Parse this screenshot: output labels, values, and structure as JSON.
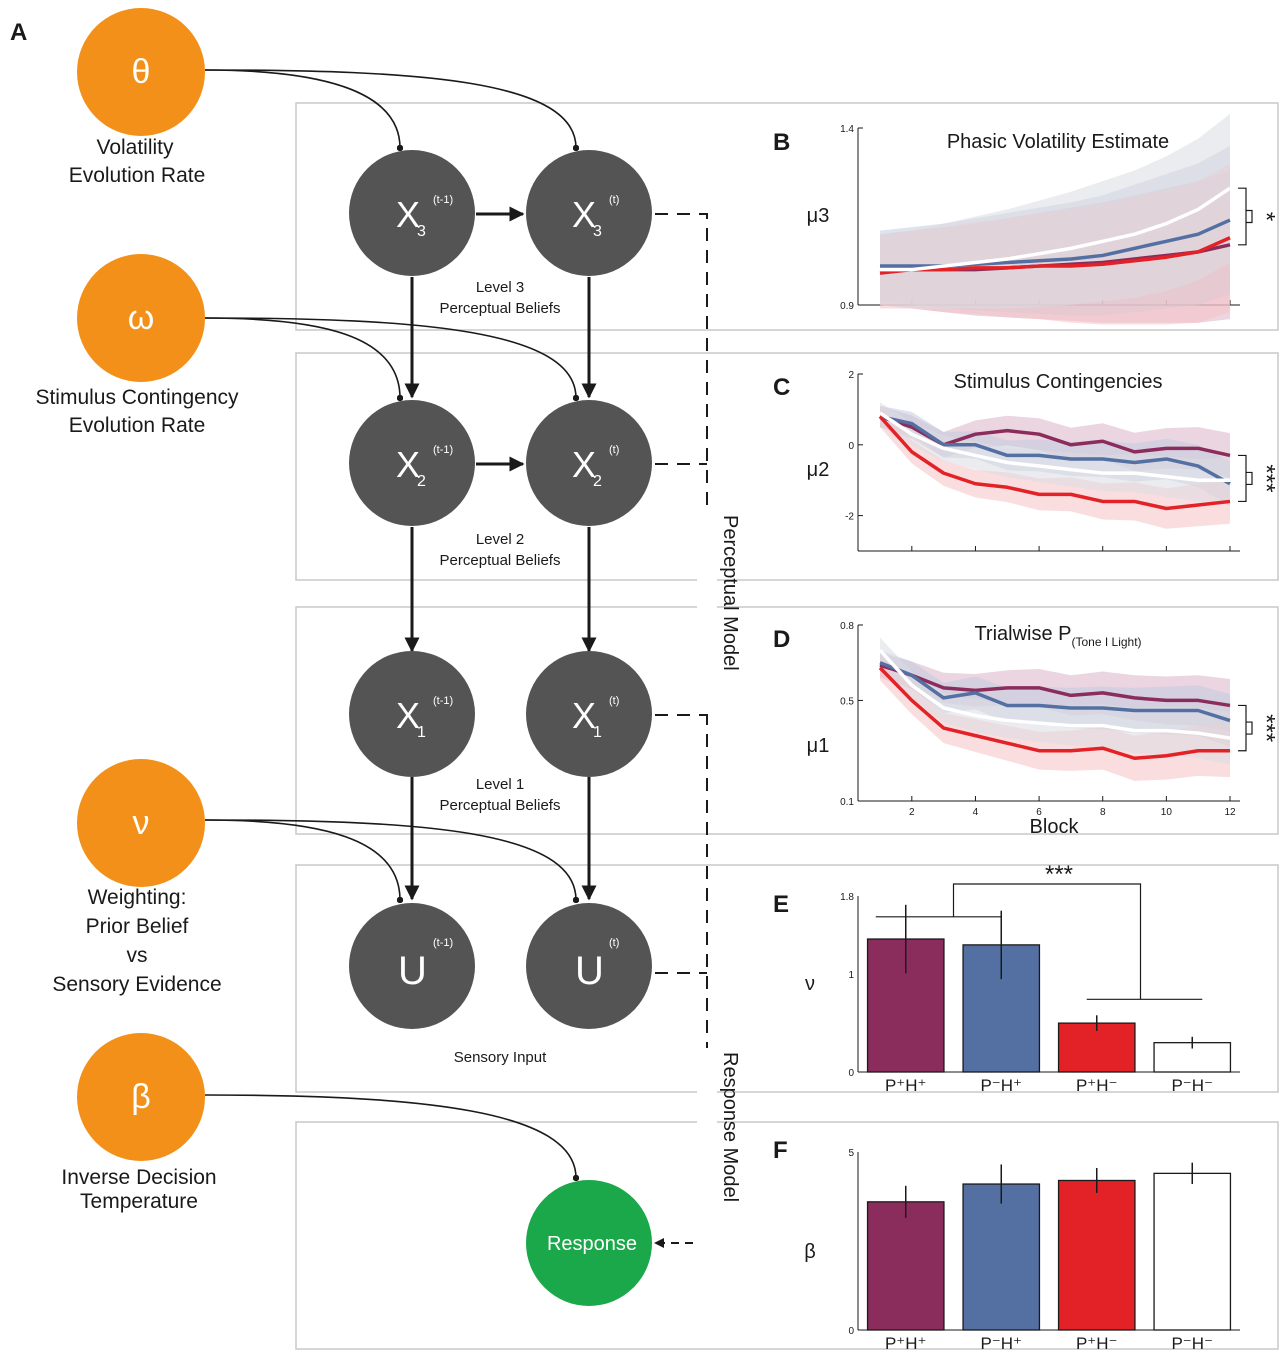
{
  "panel_labels": {
    "a": "A",
    "b": "B",
    "c": "C",
    "d": "D",
    "e": "E",
    "f": "F"
  },
  "params": [
    {
      "symbol": "θ",
      "lines": [
        "Volatility",
        "Evolution Rate"
      ]
    },
    {
      "symbol": "ω",
      "lines": [
        "Stimulus Contingency",
        "Evolution Rate"
      ]
    },
    {
      "symbol": "ν",
      "lines": [
        "Weighting:",
        "Prior Belief",
        "vs",
        "Sensory Evidence"
      ]
    },
    {
      "symbol": "β",
      "lines": [
        "Inverse Decision",
        "Temperature"
      ]
    }
  ],
  "nodes": {
    "x3": {
      "label": "X",
      "sub": "3",
      "sup_prev": "(t-1)",
      "sup_cur": "(t)"
    },
    "x2": {
      "label": "X",
      "sub": "2",
      "sup_prev": "(t-1)",
      "sup_cur": "(t)"
    },
    "x1": {
      "label": "X",
      "sub": "1",
      "sup_prev": "(t-1)",
      "sup_cur": "(t)"
    },
    "u": {
      "label": "U",
      "sup_prev": "(t-1)",
      "sup_cur": "(t)"
    },
    "response": "Response"
  },
  "levels": {
    "l3": [
      "Level 3",
      "Perceptual Beliefs"
    ],
    "l2": [
      "Level 2",
      "Perceptual Beliefs"
    ],
    "l1": [
      "Level 1",
      "Perceptual Beliefs"
    ],
    "input": "Sensory Input"
  },
  "model_labels": {
    "perceptual": "Perceptual Model",
    "response": "Response Model"
  },
  "colors": {
    "orange": "#f39019",
    "node": "#545454",
    "green": "#1aa84a",
    "purple": "#8b2d5c",
    "blue": "#5470a3",
    "red": "#e32227",
    "white": "#ffffff"
  },
  "chart_data": [
    {
      "id": "B",
      "type": "line",
      "title": "Phasic Volatility Estimate",
      "ylabel": "μ3",
      "ylim": [
        0.9,
        1.4
      ],
      "yticks": [
        "1.4",
        "0.9"
      ],
      "x": [
        1,
        2,
        3,
        4,
        5,
        6,
        7,
        8,
        9,
        10,
        11,
        12
      ],
      "series": [
        {
          "group": "P⁺H⁺",
          "color": "#8b2d5c",
          "values": [
            1.0,
            1.0,
            1.0,
            1.0,
            1.005,
            1.01,
            1.015,
            1.02,
            1.03,
            1.04,
            1.05,
            1.07
          ]
        },
        {
          "group": "P⁻H⁺",
          "color": "#5470a3",
          "values": [
            1.01,
            1.01,
            1.01,
            1.015,
            1.02,
            1.025,
            1.03,
            1.04,
            1.06,
            1.08,
            1.1,
            1.14
          ]
        },
        {
          "group": "P⁺H⁻",
          "color": "#e32227",
          "values": [
            0.99,
            1.0,
            1.0,
            1.005,
            1.005,
            1.01,
            1.01,
            1.015,
            1.025,
            1.035,
            1.05,
            1.09
          ]
        },
        {
          "group": "P⁻H⁻",
          "color": "#ffffff",
          "values": [
            1.0,
            1.0,
            1.01,
            1.02,
            1.03,
            1.045,
            1.06,
            1.08,
            1.1,
            1.13,
            1.17,
            1.23
          ]
        }
      ],
      "significance": "*"
    },
    {
      "id": "C",
      "type": "line",
      "title": "Stimulus Contingencies",
      "ylabel": "μ2",
      "ylim": [
        -3,
        2
      ],
      "yticks": [
        "2",
        "0",
        "-2"
      ],
      "x": [
        1,
        2,
        3,
        4,
        5,
        6,
        7,
        8,
        9,
        10,
        11,
        12
      ],
      "series": [
        {
          "group": "P⁺H⁺",
          "color": "#8b2d5c",
          "values": [
            0.8,
            0.5,
            0.0,
            0.3,
            0.4,
            0.3,
            0.0,
            0.1,
            -0.2,
            -0.1,
            -0.1,
            -0.3
          ]
        },
        {
          "group": "P⁻H⁺",
          "color": "#5470a3",
          "values": [
            0.8,
            0.6,
            0.0,
            0.0,
            -0.3,
            -0.3,
            -0.4,
            -0.4,
            -0.5,
            -0.4,
            -0.6,
            -1.1
          ]
        },
        {
          "group": "P⁺H⁻",
          "color": "#e32227",
          "values": [
            0.8,
            -0.2,
            -0.8,
            -1.1,
            -1.2,
            -1.4,
            -1.4,
            -1.6,
            -1.6,
            -1.8,
            -1.7,
            -1.6
          ]
        },
        {
          "group": "P⁻H⁻",
          "color": "#ffffff",
          "values": [
            0.9,
            0.3,
            -0.1,
            -0.3,
            -0.5,
            -0.6,
            -0.7,
            -0.8,
            -0.8,
            -0.9,
            -1.0,
            -1.0
          ]
        }
      ],
      "significance": "***"
    },
    {
      "id": "D",
      "type": "line",
      "title": "Trialwise P",
      "title_sub": "(Tone I Light)",
      "ylabel": "μ1",
      "ylim": [
        0.1,
        0.8
      ],
      "yticks": [
        "0.8",
        "0.5",
        "0.1"
      ],
      "xlabel": "Block",
      "xticks": [
        "2",
        "4",
        "6",
        "8",
        "10",
        "12"
      ],
      "x": [
        1,
        2,
        3,
        4,
        5,
        6,
        7,
        8,
        9,
        10,
        11,
        12
      ],
      "series": [
        {
          "group": "P⁺H⁺",
          "color": "#8b2d5c",
          "values": [
            0.64,
            0.6,
            0.55,
            0.54,
            0.55,
            0.55,
            0.52,
            0.53,
            0.51,
            0.5,
            0.5,
            0.48
          ]
        },
        {
          "group": "P⁻H⁺",
          "color": "#5470a3",
          "values": [
            0.65,
            0.6,
            0.51,
            0.53,
            0.48,
            0.48,
            0.47,
            0.47,
            0.46,
            0.46,
            0.46,
            0.42
          ]
        },
        {
          "group": "P⁺H⁻",
          "color": "#e32227",
          "values": [
            0.63,
            0.5,
            0.39,
            0.36,
            0.33,
            0.3,
            0.3,
            0.31,
            0.27,
            0.28,
            0.3,
            0.3
          ]
        },
        {
          "group": "P⁻H⁻",
          "color": "#ffffff",
          "values": [
            0.7,
            0.56,
            0.47,
            0.44,
            0.42,
            0.41,
            0.4,
            0.4,
            0.38,
            0.38,
            0.37,
            0.35
          ]
        }
      ],
      "significance": "***"
    },
    {
      "id": "E",
      "type": "bar",
      "ylabel": "ν",
      "ylim": [
        0,
        1.8
      ],
      "yticks": [
        "1.8",
        "1",
        "0"
      ],
      "categories": [
        "P⁺H⁺",
        "P⁻H⁺",
        "P⁺H⁻",
        "P⁻H⁻"
      ],
      "values": [
        1.36,
        1.3,
        0.5,
        0.3
      ],
      "errors": [
        0.35,
        0.35,
        0.08,
        0.06
      ],
      "colors": [
        "#8b2d5c",
        "#5470a3",
        "#e32227",
        "#ffffff"
      ],
      "significance": "***"
    },
    {
      "id": "F",
      "type": "bar",
      "ylabel": "β",
      "ylim": [
        0,
        5
      ],
      "yticks": [
        "5",
        "0"
      ],
      "categories": [
        "P⁺H⁺",
        "P⁻H⁺",
        "P⁺H⁻",
        "P⁻H⁻"
      ],
      "values": [
        3.6,
        4.1,
        4.2,
        4.4
      ],
      "errors": [
        0.45,
        0.55,
        0.35,
        0.3
      ],
      "colors": [
        "#8b2d5c",
        "#5470a3",
        "#e32227",
        "#ffffff"
      ]
    }
  ]
}
